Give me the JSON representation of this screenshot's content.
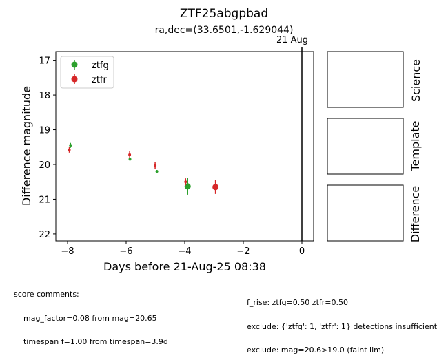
{
  "chart_data": {
    "type": "scatter",
    "title": "ZTF25abgpbad",
    "subtitle": "ra,dec=(33.6501,-1.629044)",
    "xlabel": "Days before 21-Aug-25 08:38",
    "ylabel": "Difference magnitude",
    "xlim": [
      -8.4,
      0.4
    ],
    "ylim": [
      22.2,
      16.75
    ],
    "y_inverted": true,
    "xticks": [
      -8,
      -6,
      -4,
      -2,
      0
    ],
    "xtick_labels": [
      "−8",
      "−6",
      "−4",
      "−2",
      "0"
    ],
    "yticks": [
      17,
      18,
      19,
      20,
      21,
      22
    ],
    "ytick_labels": [
      "17",
      "18",
      "19",
      "20",
      "21",
      "22"
    ],
    "grid": false,
    "legend_position": "top-left",
    "reference_line": {
      "x": 0,
      "label": "21 Aug"
    },
    "series": [
      {
        "name": "ztfg",
        "color": "#2ca02c",
        "points": [
          {
            "x": -7.9,
            "y": 19.45,
            "err": 0.07,
            "marker": "small"
          },
          {
            "x": -5.87,
            "y": 19.85,
            "err": 0.04,
            "marker": "small"
          },
          {
            "x": -4.95,
            "y": 20.2,
            "err": 0.04,
            "marker": "small"
          },
          {
            "x": -3.9,
            "y": 20.63,
            "err": 0.24,
            "marker": "large"
          }
        ]
      },
      {
        "name": "ztfr",
        "color": "#d62728",
        "points": [
          {
            "x": -7.94,
            "y": 19.58,
            "err": 0.08,
            "marker": "small"
          },
          {
            "x": -5.88,
            "y": 19.72,
            "err": 0.1,
            "marker": "small"
          },
          {
            "x": -5.01,
            "y": 20.03,
            "err": 0.09,
            "marker": "small"
          },
          {
            "x": -3.97,
            "y": 20.5,
            "err": 0.1,
            "marker": "small"
          },
          {
            "x": -2.95,
            "y": 20.65,
            "err": 0.2,
            "marker": "large"
          }
        ]
      }
    ]
  },
  "stamps": [
    {
      "label": "Science"
    },
    {
      "label": "Template"
    },
    {
      "label": "Difference"
    }
  ],
  "comments": {
    "left": [
      "score comments:",
      "    mag_factor=0.08 from mag=20.65",
      "    timespan f=1.00 from timespan=3.9d"
    ],
    "right": [
      "f_rise: ztfg=0.50 ztfr=0.50",
      "exclude: {'ztfg': 1, 'ztfr': 1} detections insufficient",
      "exclude: mag=20.6>19.0 (faint lim)"
    ]
  }
}
